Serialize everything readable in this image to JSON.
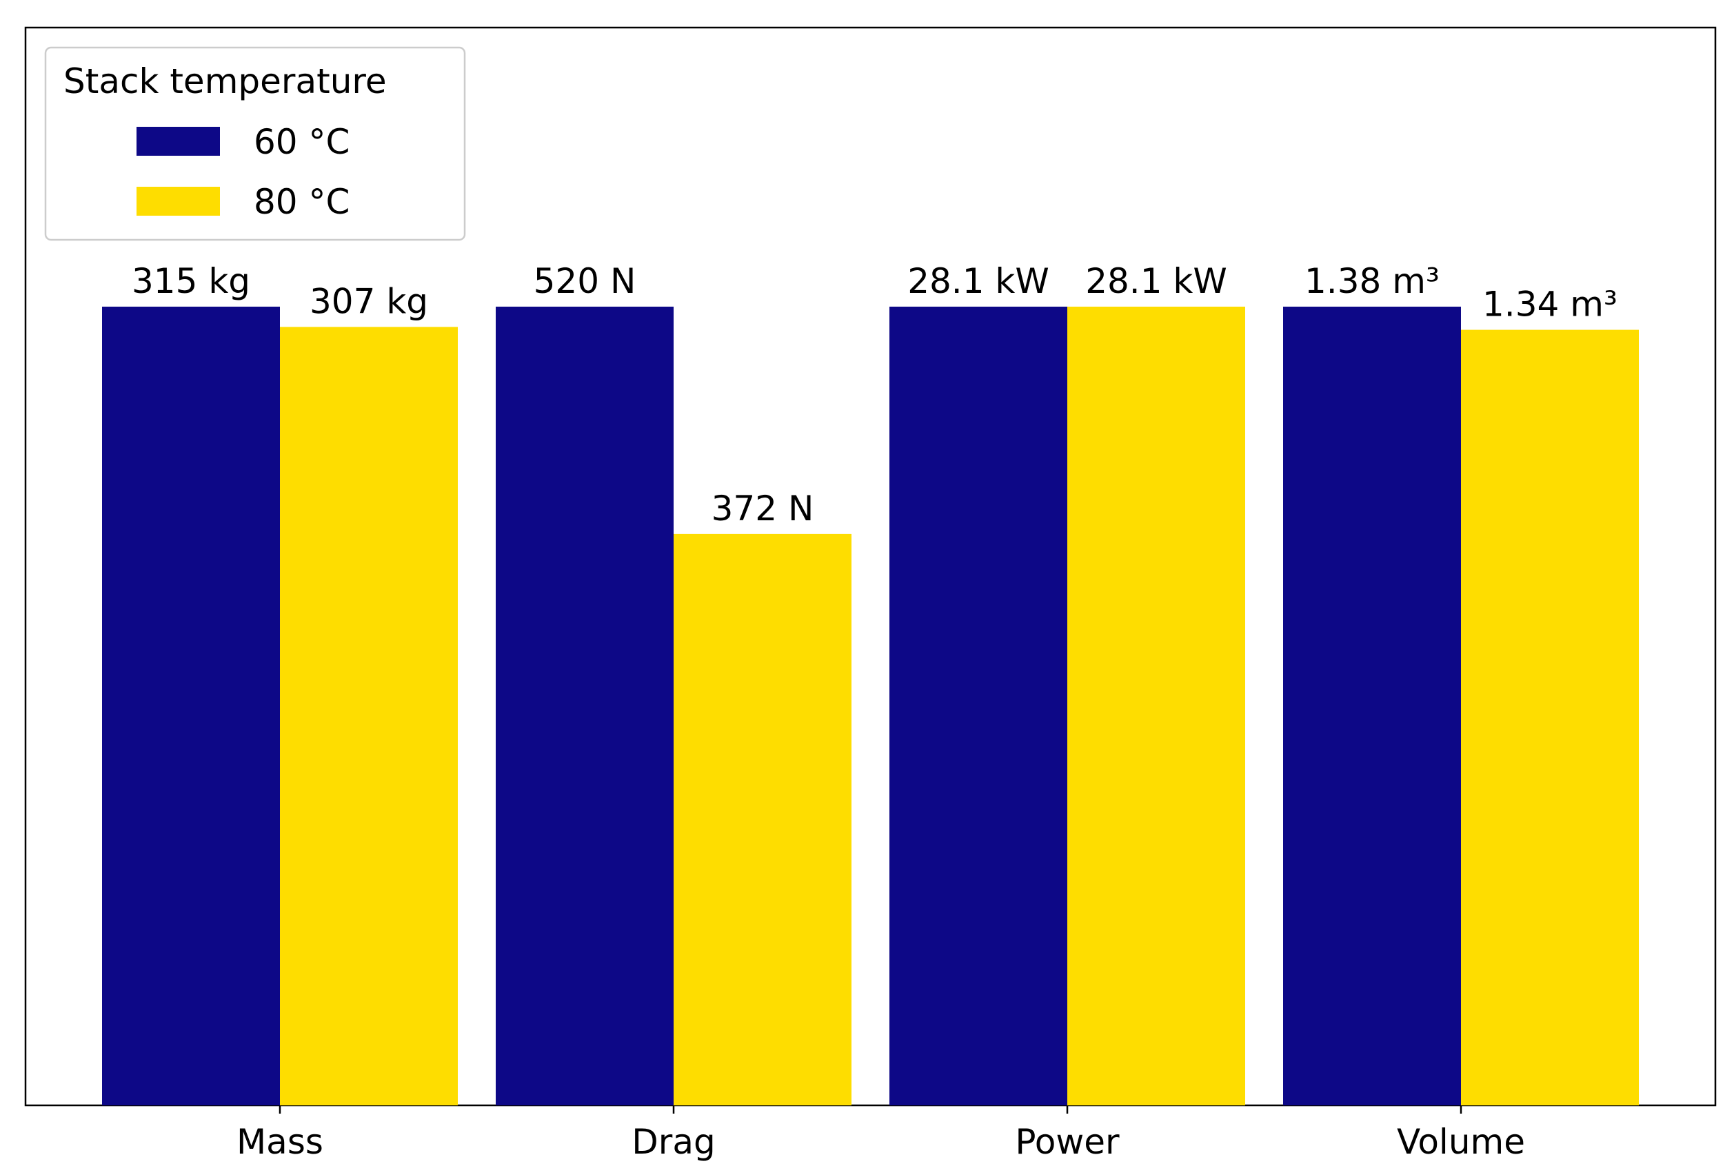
{
  "chart_data": {
    "type": "bar",
    "categories": [
      "Mass",
      "Drag",
      "Power",
      "Volume"
    ],
    "legend_title": "Stack temperature",
    "legend_position": "upper left",
    "series": [
      {
        "name": "60 °C",
        "color": "#0d0887",
        "values": [
          315,
          520,
          28.1,
          1.38
        ],
        "value_labels": [
          "315 kg",
          "520 N",
          "28.1 kW",
          "1.38 m³"
        ]
      },
      {
        "name": "80 °C",
        "color": "#fedd00",
        "values": [
          307,
          372,
          28.1,
          1.34
        ],
        "value_labels": [
          "307 kg",
          "372 N",
          "28.1 kW",
          "1.34 m³"
        ]
      }
    ]
  }
}
